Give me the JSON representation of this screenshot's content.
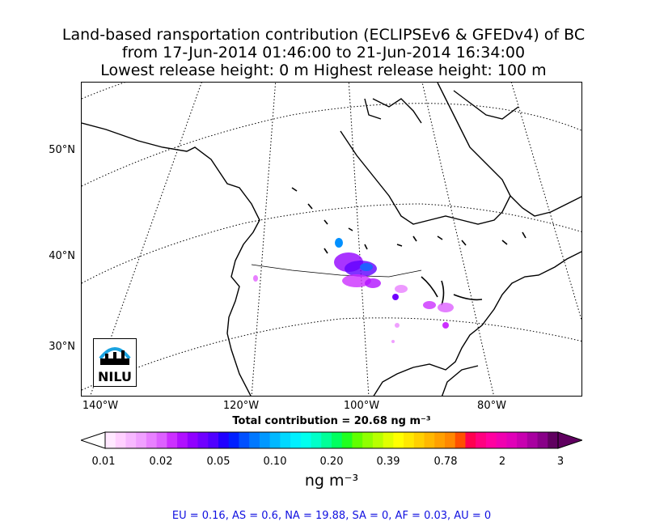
{
  "title": {
    "line1": "Land-based ransportation contribution (ECLIPSEv6 & GFEDv4) of BC",
    "line2": "from 17-Jun-2014 01:46:00 to 21-Jun-2014 16:34:00",
    "line3": "Lowest release height: 0 m      Highest release height: 100 m"
  },
  "map": {
    "lat_labels": [
      "50°N",
      "40°N",
      "30°N"
    ],
    "lon_labels": [
      "140°W",
      "120°W",
      "100°W",
      "80°W"
    ],
    "logo_text": "NILU"
  },
  "total": "Total contribution = 20.68 ng m⁻³",
  "colorbar": {
    "ticks": [
      "0.01",
      "0.02",
      "0.05",
      "0.10",
      "0.20",
      "0.39",
      "0.78",
      "2",
      "3"
    ],
    "unit": "ng m⁻³",
    "colors": [
      "#ffe8ff",
      "#ffd0ff",
      "#f7b8ff",
      "#f0a0ff",
      "#e880ff",
      "#dd60ff",
      "#cc30ff",
      "#b010ff",
      "#9000ff",
      "#7000ff",
      "#5000ff",
      "#2000ff",
      "#0020ff",
      "#0050ff",
      "#0078ff",
      "#0098ff",
      "#00b8ff",
      "#00d8ff",
      "#00f0ff",
      "#00ffee",
      "#00ffc8",
      "#00ff98",
      "#00ff60",
      "#20ff20",
      "#60ff00",
      "#90ff00",
      "#b8ff00",
      "#e0ff00",
      "#ffff00",
      "#ffe800",
      "#ffd000",
      "#ffb800",
      "#ffa000",
      "#ff8800",
      "#ff5000",
      "#ff0050",
      "#ff0080",
      "#ff00a0",
      "#f000b0",
      "#e000b8",
      "#c800b0",
      "#a800a0",
      "#880088",
      "#600060"
    ]
  },
  "regions": "EU = 0.16,  AS = 0.6,  NA = 19.88,  SA = 0,  AF = 0.03,  AU = 0"
}
